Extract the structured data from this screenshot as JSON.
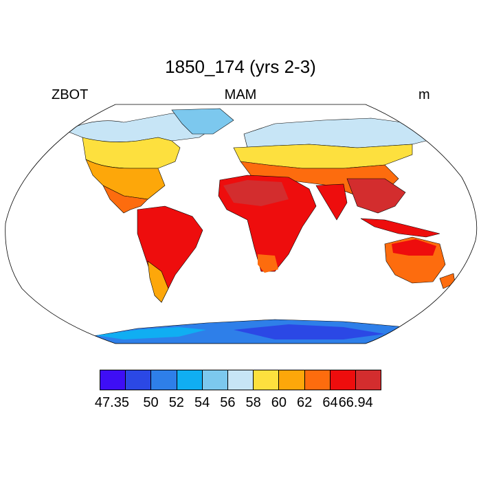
{
  "header": {
    "title": "1850_174 (yrs 2-3)",
    "left": "ZBOT",
    "center": "MAM",
    "right": "m"
  },
  "colorbar": {
    "colors": [
      "#3e0ef5",
      "#2b48e5",
      "#2e7fe9",
      "#10aef2",
      "#7cc8ee",
      "#c7e5f6",
      "#fde03e",
      "#fda70a",
      "#fd6c0e",
      "#ee0d0d",
      "#d32d2e"
    ],
    "labels": [
      "47.35",
      "50",
      "52",
      "54",
      "56",
      "58",
      "60",
      "62",
      "64",
      "66.94"
    ]
  },
  "map": {
    "projection": "robinson",
    "ocean_color": "#ffffff"
  }
}
